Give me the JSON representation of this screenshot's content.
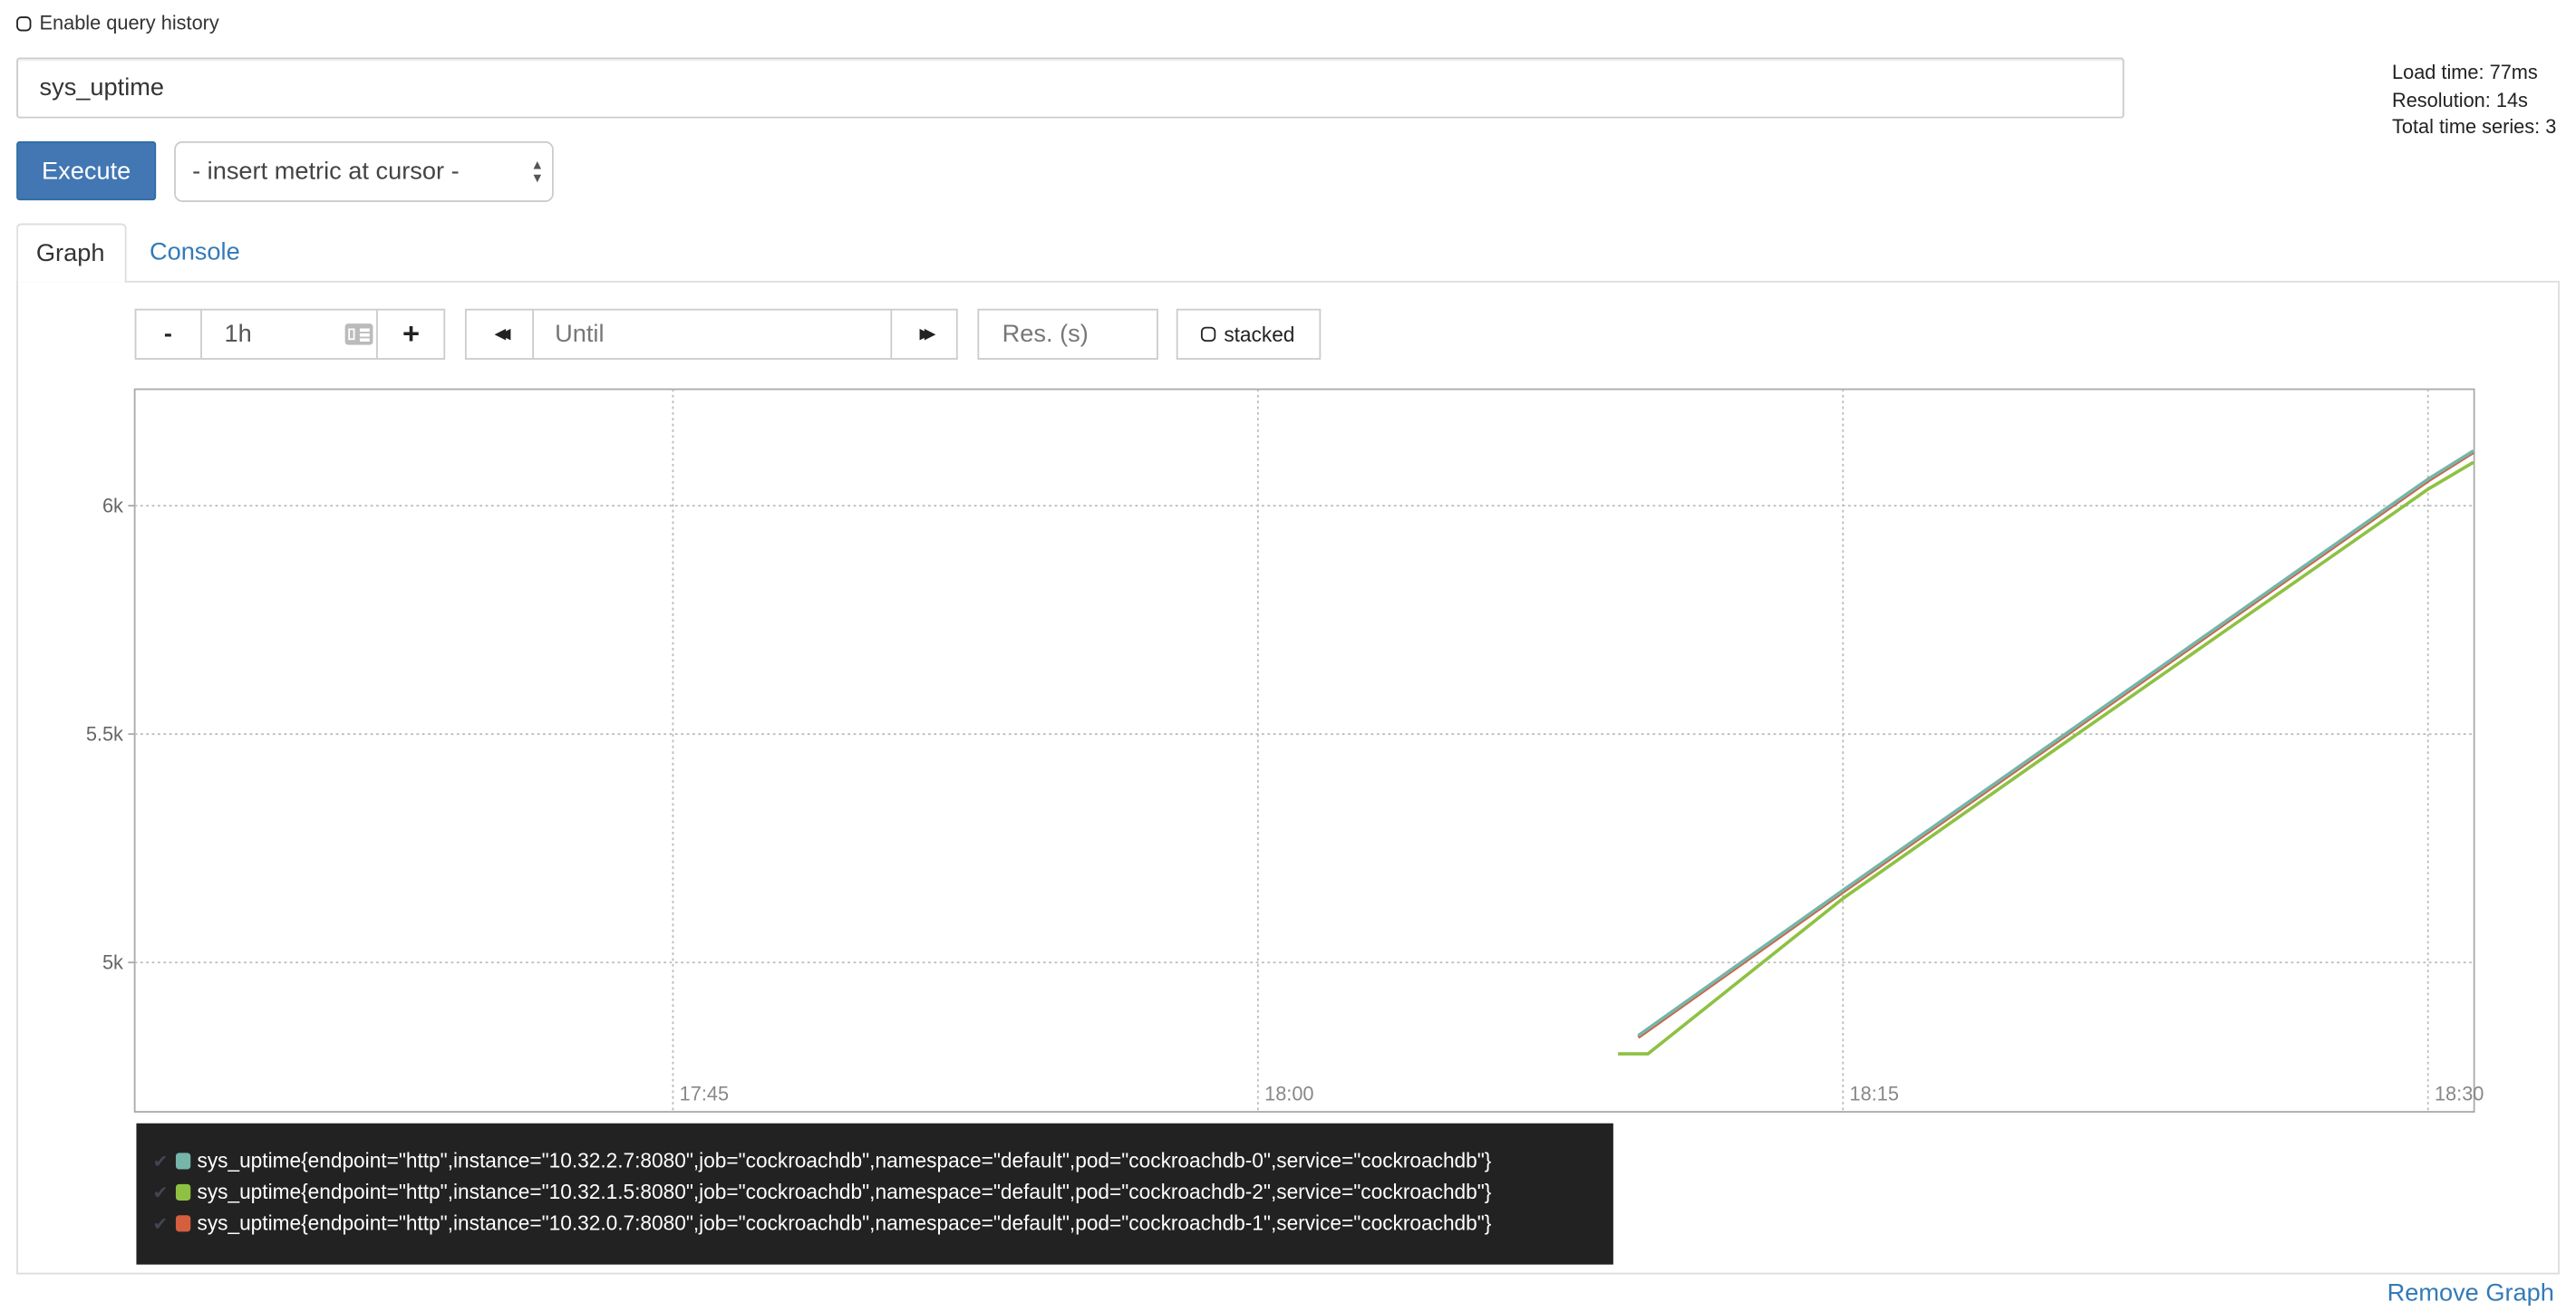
{
  "history": {
    "label": "Enable query history",
    "checked": false
  },
  "query": {
    "value": "sys_uptime"
  },
  "info": {
    "load_time": "Load time: 77ms",
    "resolution": "Resolution: 14s",
    "total_series": "Total time series: 3"
  },
  "toolbar": {
    "execute_label": "Execute",
    "metric_select": "- insert metric at cursor -"
  },
  "tabs": [
    {
      "label": "Graph",
      "active": true
    },
    {
      "label": "Console",
      "active": false
    }
  ],
  "controls": {
    "range_minus": "-",
    "range_value": "1h",
    "range_plus": "+",
    "back": "◀◀",
    "until_placeholder": "Until",
    "forward": "▶▶",
    "res_placeholder": "Res. (s)",
    "stacked_label": "stacked"
  },
  "chart_data": {
    "type": "line",
    "xlim": [
      "17:31:12",
      "18:31:11"
    ],
    "ylim": [
      4673,
      6255
    ],
    "x_ticks": [
      "17:45",
      "18:00",
      "18:15",
      "18:30"
    ],
    "y_ticks": [
      {
        "value": 5000,
        "label": "5k"
      },
      {
        "value": 5500,
        "label": "5.5k"
      },
      {
        "value": 6000,
        "label": "6k"
      }
    ],
    "grid": true,
    "legend_position": "bottom",
    "series": [
      {
        "name": "sys_uptime{endpoint=\"http\",instance=\"10.32.2.7:8080\",job=\"cockroachdb\",namespace=\"default\",pod=\"cockroachdb-0\",service=\"cockroachdb\"}",
        "color": "#75b5aa",
        "points": [
          [
            "18:09:45",
            4840
          ],
          [
            "18:15:00",
            5158
          ],
          [
            "18:20:00",
            5458
          ],
          [
            "18:25:00",
            5758
          ],
          [
            "18:30:00",
            6058
          ],
          [
            "18:31:10",
            6120
          ]
        ]
      },
      {
        "name": "sys_uptime{endpoint=\"http\",instance=\"10.32.1.5:8080\",job=\"cockroachdb\",namespace=\"default\",pod=\"cockroachdb-2\",service=\"cockroachdb\"}",
        "color": "#8ec143",
        "points": [
          [
            "18:09:14",
            4800
          ],
          [
            "18:10:00",
            4800
          ],
          [
            "18:15:00",
            5140
          ],
          [
            "18:20:00",
            5440
          ],
          [
            "18:25:00",
            5738
          ],
          [
            "18:30:00",
            6036
          ],
          [
            "18:31:10",
            6095
          ]
        ]
      },
      {
        "name": "sys_uptime{endpoint=\"http\",instance=\"10.32.0.7:8080\",job=\"cockroachdb\",namespace=\"default\",pod=\"cockroachdb-1\",service=\"cockroachdb\"}",
        "color": "#d35f3f",
        "points": [
          [
            "18:09:45",
            4836
          ],
          [
            "18:15:00",
            5154
          ],
          [
            "18:20:00",
            5454
          ],
          [
            "18:25:00",
            5754
          ],
          [
            "18:30:00",
            6054
          ],
          [
            "18:31:10",
            6117
          ]
        ]
      }
    ]
  },
  "remove_graph": "Remove Graph"
}
